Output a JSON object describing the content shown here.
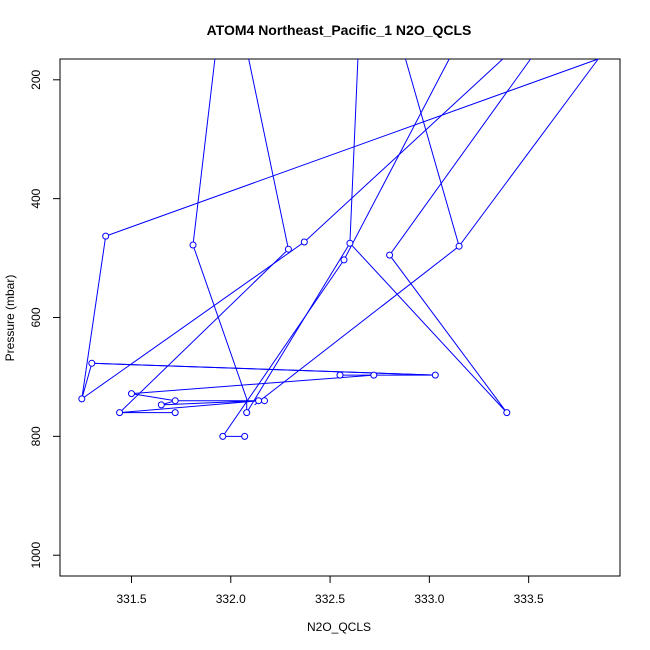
{
  "chart_data": {
    "type": "line",
    "title": "ATOM4 Northeast_Pacific_1 N2O_QCLS",
    "xlabel": "N2O_QCLS",
    "ylabel": "Pressure (mbar)",
    "xlim": [
      331.14,
      333.96
    ],
    "ylim": [
      1035,
      165
    ],
    "y_reversed": true,
    "xticks": [
      331.5,
      332.0,
      332.5,
      333.0,
      333.5
    ],
    "xtick_labels": [
      "331.5",
      "332.0",
      "332.5",
      "333.0",
      "333.5"
    ],
    "yticks": [
      200,
      400,
      600,
      800,
      1000
    ],
    "ytick_labels": [
      "200",
      "400",
      "600",
      "800",
      "1000"
    ],
    "grid": false,
    "series_color": "#0000ff",
    "segments": [
      {
        "points": [
          [
            333.85,
            165
          ],
          [
            331.37,
            463
          ],
          [
            331.25,
            737
          ],
          [
            331.3,
            677
          ],
          [
            333.03,
            697
          ]
        ]
      },
      {
        "points": [
          [
            332.72,
            697
          ],
          [
            331.5,
            728
          ],
          [
            331.72,
            740
          ],
          [
            331.65,
            747
          ],
          [
            332.14,
            740
          ],
          [
            331.73,
            740
          ],
          [
            332.17,
            740
          ],
          [
            331.72,
            740
          ],
          [
            332.15,
            740
          ],
          [
            331.44,
            760
          ],
          [
            331.72,
            760
          ]
        ]
      },
      {
        "points": [
          [
            333.03,
            697
          ],
          [
            332.55,
            697
          ]
        ]
      },
      {
        "points": [
          [
            331.92,
            165
          ],
          [
            331.81,
            478
          ],
          [
            332.08,
            737
          ],
          [
            332.08,
            760
          ],
          [
            332.6,
            475
          ],
          [
            332.64,
            165
          ]
        ]
      },
      {
        "points": [
          [
            332.09,
            165
          ],
          [
            332.29,
            485
          ],
          [
            331.44,
            760
          ]
        ]
      },
      {
        "points": [
          [
            333.37,
            165
          ],
          [
            332.37,
            473
          ],
          [
            331.25,
            737
          ]
        ]
      },
      {
        "points": [
          [
            333.1,
            165
          ],
          [
            332.57,
            503
          ],
          [
            331.96,
            800
          ],
          [
            332.07,
            800
          ]
        ]
      },
      {
        "points": [
          [
            333.85,
            165
          ],
          [
            333.15,
            480
          ],
          [
            332.88,
            165
          ]
        ]
      },
      {
        "points": [
          [
            332.6,
            475
          ],
          [
            333.39,
            760
          ],
          [
            332.8,
            495
          ],
          [
            333.51,
            165
          ]
        ]
      },
      {
        "points": [
          [
            333.15,
            480
          ],
          [
            332.12,
            747
          ]
        ]
      },
      {
        "points": [
          [
            331.3,
            677
          ],
          [
            333.03,
            697
          ]
        ]
      }
    ],
    "markers": [
      [
        331.37,
        463
      ],
      [
        331.25,
        737
      ],
      [
        331.3,
        677
      ],
      [
        333.03,
        697
      ],
      [
        332.72,
        697
      ],
      [
        332.55,
        697
      ],
      [
        331.5,
        728
      ],
      [
        331.72,
        740
      ],
      [
        331.65,
        747
      ],
      [
        332.14,
        740
      ],
      [
        332.17,
        740
      ],
      [
        331.44,
        760
      ],
      [
        331.72,
        760
      ],
      [
        331.81,
        478
      ],
      [
        332.08,
        760
      ],
      [
        332.6,
        475
      ],
      [
        332.29,
        485
      ],
      [
        332.37,
        473
      ],
      [
        332.57,
        503
      ],
      [
        331.96,
        800
      ],
      [
        332.07,
        800
      ],
      [
        333.15,
        480
      ],
      [
        333.39,
        760
      ],
      [
        332.8,
        495
      ]
    ]
  }
}
